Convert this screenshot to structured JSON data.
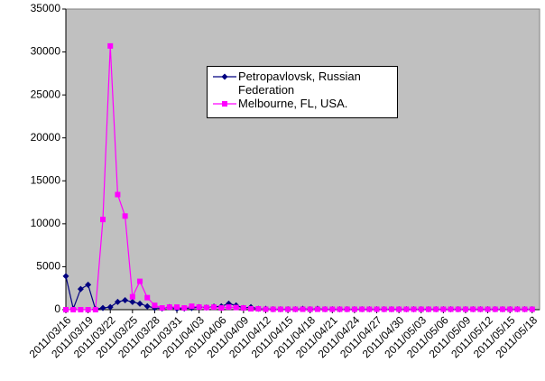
{
  "chart_data": {
    "type": "line",
    "categories": [
      "2011/03/16",
      null,
      null,
      "2011/03/19",
      null,
      null,
      "2011/03/22",
      null,
      null,
      "2011/03/25",
      null,
      null,
      "2011/03/28",
      null,
      null,
      "2011/03/31",
      null,
      null,
      "2011/04/03",
      null,
      null,
      "2011/04/06",
      null,
      null,
      "2011/04/09",
      null,
      null,
      "2011/04/12",
      null,
      null,
      "2011/04/15",
      null,
      null,
      "2011/04/18",
      null,
      null,
      "2011/04/21",
      null,
      null,
      "2011/04/24",
      null,
      null,
      "2011/04/27",
      null,
      null,
      "2011/04/30",
      null,
      null,
      "2011/05/03",
      null,
      null,
      "2011/05/06",
      null,
      null,
      "2011/05/09",
      null,
      null,
      "2011/05/12",
      null,
      null,
      "2011/05/15",
      null,
      null,
      "2011/05/18"
    ],
    "series": [
      {
        "name": "Petropavlovsk, Russian Federation",
        "color": "#000080",
        "marker": "diamond",
        "values": [
          3900,
          100,
          2400,
          2900,
          50,
          200,
          300,
          900,
          1100,
          900,
          700,
          400,
          200,
          150,
          300,
          100,
          150,
          200,
          300,
          250,
          350,
          400,
          700,
          500,
          200,
          300,
          100,
          100,
          50,
          50,
          50,
          50,
          100,
          50,
          100,
          50,
          50,
          50,
          50,
          50,
          50,
          50,
          50,
          50,
          50,
          50,
          50,
          50,
          50,
          50,
          50,
          50,
          50,
          50,
          50,
          50,
          50,
          50,
          50,
          50,
          50,
          50,
          50,
          50
        ]
      },
      {
        "name": "Melbourne, FL, USA.",
        "color": "#ff00ff",
        "marker": "square",
        "values": [
          0,
          0,
          0,
          0,
          0,
          10500,
          30700,
          13400,
          10900,
          1500,
          3300,
          1400,
          500,
          200,
          300,
          300,
          200,
          400,
          300,
          250,
          300,
          200,
          300,
          250,
          200,
          100,
          100,
          50,
          50,
          50,
          50,
          50,
          50,
          50,
          50,
          50,
          50,
          50,
          50,
          50,
          50,
          50,
          50,
          50,
          50,
          50,
          50,
          50,
          50,
          50,
          50,
          50,
          50,
          50,
          50,
          50,
          50,
          50,
          50,
          50,
          50,
          50,
          50,
          50
        ]
      }
    ],
    "ylim": [
      0,
      35000
    ],
    "yticks": [
      0,
      5000,
      10000,
      15000,
      20000,
      25000,
      30000,
      35000
    ],
    "grid": false,
    "plot_background": "#c0c0c0"
  }
}
